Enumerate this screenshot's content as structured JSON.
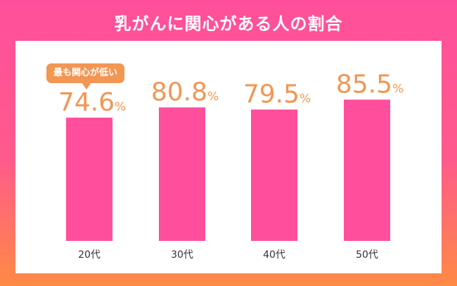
{
  "title": "乳がんに関心がある人の割合",
  "callout": "最も関心が低い",
  "colors": {
    "bar": "#ff4f9c",
    "value": "#f29653",
    "axis": "#333333"
  },
  "chart_data": {
    "type": "bar",
    "categories": [
      "20代",
      "30代",
      "40代",
      "50代"
    ],
    "values": [
      74.6,
      80.8,
      79.5,
      85.5
    ],
    "value_labels": [
      "74.6",
      "80.8",
      "79.5",
      "85.5"
    ],
    "unit": "%",
    "title": "乳がんに関心がある人の割合",
    "xlabel": "",
    "ylabel": "",
    "grid": false,
    "annotations": [
      {
        "category": "20代",
        "text": "最も関心が低い"
      }
    ]
  }
}
